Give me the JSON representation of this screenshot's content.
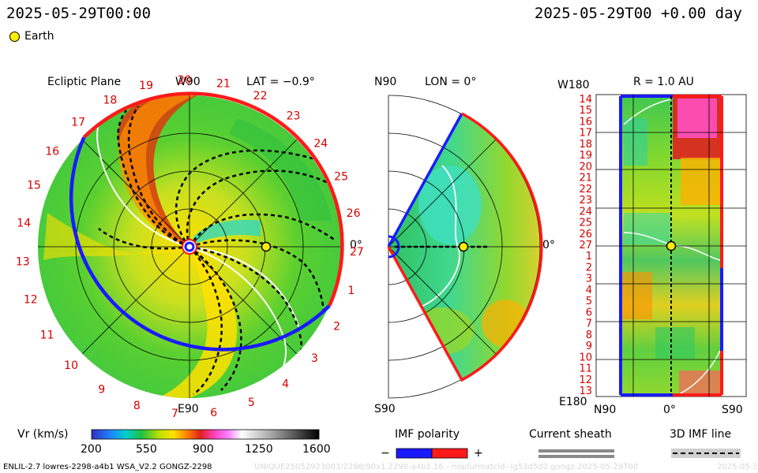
{
  "header": {
    "left_time": "2025-05-29T00:00",
    "right_time": "2025-05-29T00 +0.00 day"
  },
  "legend": {
    "earth_label": "Earth"
  },
  "panels": {
    "ecliptic": {
      "title": "Ecliptic Plane",
      "top_label": "W90",
      "lat_label": "LAT = −0.9°",
      "bottom_label": "E90",
      "right_label": "0°",
      "carrington": [
        "19",
        "20",
        "21",
        "22",
        "23",
        "24",
        "25",
        "26",
        "27",
        "1",
        "2",
        "3",
        "4",
        "5",
        "6",
        "7",
        "8",
        "9",
        "10",
        "11",
        "12",
        "13",
        "14",
        "15",
        "16",
        "17",
        "18"
      ]
    },
    "meridional": {
      "top_label": "N90",
      "lon_label": "LON = 0°",
      "bottom_label": "S90",
      "right_label": "0°"
    },
    "radial": {
      "top_left": "W180",
      "title": "R = 1.0 AU",
      "bottom_left": "E180",
      "x_ticks": [
        "N90",
        "0°",
        "S90"
      ],
      "y_ticks": [
        "14",
        "15",
        "16",
        "17",
        "18",
        "19",
        "20",
        "21",
        "22",
        "23",
        "24",
        "25",
        "26",
        "27",
        "1",
        "2",
        "3",
        "4",
        "5",
        "6",
        "7",
        "8",
        "9",
        "10",
        "11",
        "12",
        "13"
      ]
    }
  },
  "colorbar": {
    "label": "Vr (km/s)",
    "ticks": [
      "200",
      "550",
      "900",
      "1250",
      "1600"
    ]
  },
  "imf_legend": {
    "title": "IMF polarity",
    "minus": "−",
    "plus": "+",
    "sheath_title": "Current sheath",
    "line_title": "3D IMF line"
  },
  "footer": {
    "left": "ENLIL-2.7 lowres-2298-a4b1 WSA_V2.2 GONGZ-2298",
    "right": "UNIQUE25052923003/2298/90x1.2298-a4b1.16.--nopfurroatcid--lg53d5d2.gongz-2025-05-29T00",
    "right2": "2025-05-30"
  },
  "chart_data": {
    "type": "heatmap",
    "quantity": "Vr (km/s)",
    "color_range": [
      200,
      1600
    ],
    "colorbar_ticks": [
      200,
      550,
      900,
      1250,
      1600
    ],
    "earth": {
      "radius_au": 1.0,
      "longitude_deg": 0,
      "latitude_deg": -0.9
    },
    "imf_polarity": [
      "-",
      "+"
    ],
    "colors": {
      "polarity_neg": "#1a1aff",
      "polarity_pos": "#ff1a1a",
      "earth": "#ffee00"
    }
  }
}
